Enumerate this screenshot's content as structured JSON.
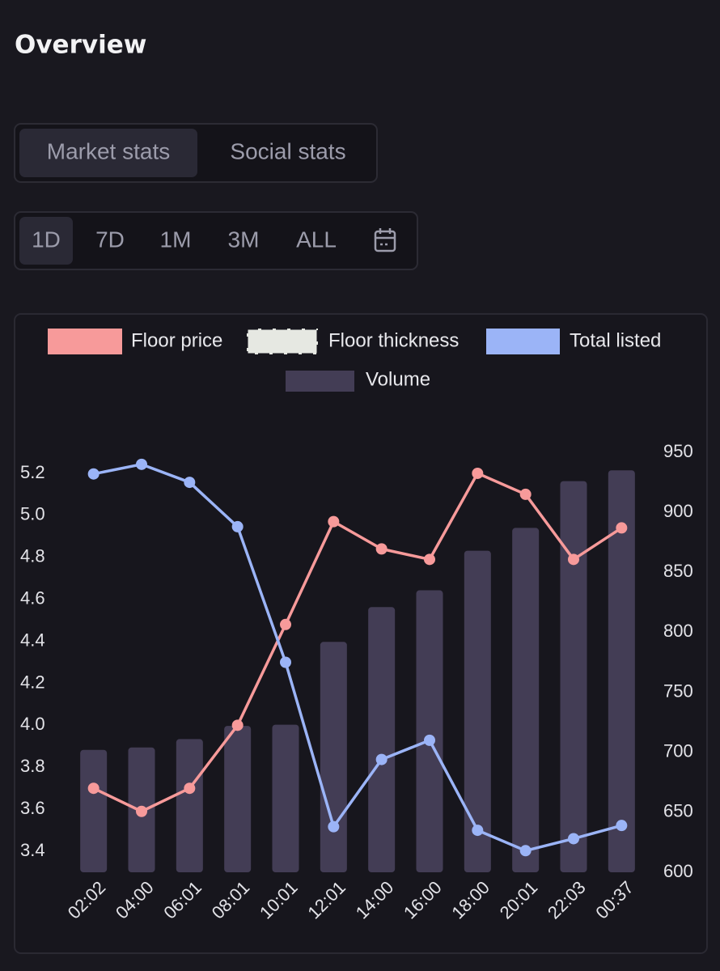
{
  "header": {
    "title": "Overview"
  },
  "tabs": [
    "Market stats",
    "Social stats"
  ],
  "ranges": [
    "1D",
    "7D",
    "1M",
    "3M",
    "ALL"
  ],
  "chart_data": {
    "type": "line",
    "categories": [
      "02:02",
      "04:00",
      "06:01",
      "08:01",
      "10:01",
      "12:01",
      "14:00",
      "16:00",
      "18:00",
      "20:01",
      "22:03",
      "00:37"
    ],
    "series": [
      {
        "name": "Floor price",
        "type": "line",
        "color": "#f79a9a",
        "values": [
          3.7,
          3.59,
          3.7,
          4.0,
          4.48,
          4.97,
          4.84,
          4.79,
          5.2,
          5.1,
          4.79,
          4.94
        ]
      },
      {
        "name": "Floor thickness",
        "type": "line",
        "color": "#e6e8e2",
        "values": [
          null,
          null,
          null,
          null,
          null,
          null,
          null,
          null,
          null,
          null,
          null,
          null
        ]
      },
      {
        "name": "Total listed",
        "type": "line",
        "axis": "y2",
        "color": "#9bb4f7",
        "values": [
          932,
          940,
          925,
          888,
          775,
          638,
          694,
          710,
          635,
          618,
          628,
          639
        ]
      },
      {
        "name": "Volume",
        "type": "bar",
        "axis": "y2",
        "color": "#433d55",
        "values": [
          702,
          704,
          711,
          722,
          723,
          792,
          821,
          835,
          868,
          887,
          926,
          935
        ]
      }
    ],
    "ylim": [
      3.3,
      5.3
    ],
    "yticks": [
      3.4,
      3.6,
      3.8,
      {
        "value": 4.0,
        "label": "4.0"
      },
      4.2,
      4.4,
      4.6,
      4.8,
      {
        "value": 5.0,
        "label": "5.0"
      },
      5.2
    ],
    "y2lim": [
      600,
      950
    ],
    "y2ticks": [
      600,
      650,
      700,
      750,
      800,
      850,
      900,
      950
    ],
    "grid": false
  }
}
